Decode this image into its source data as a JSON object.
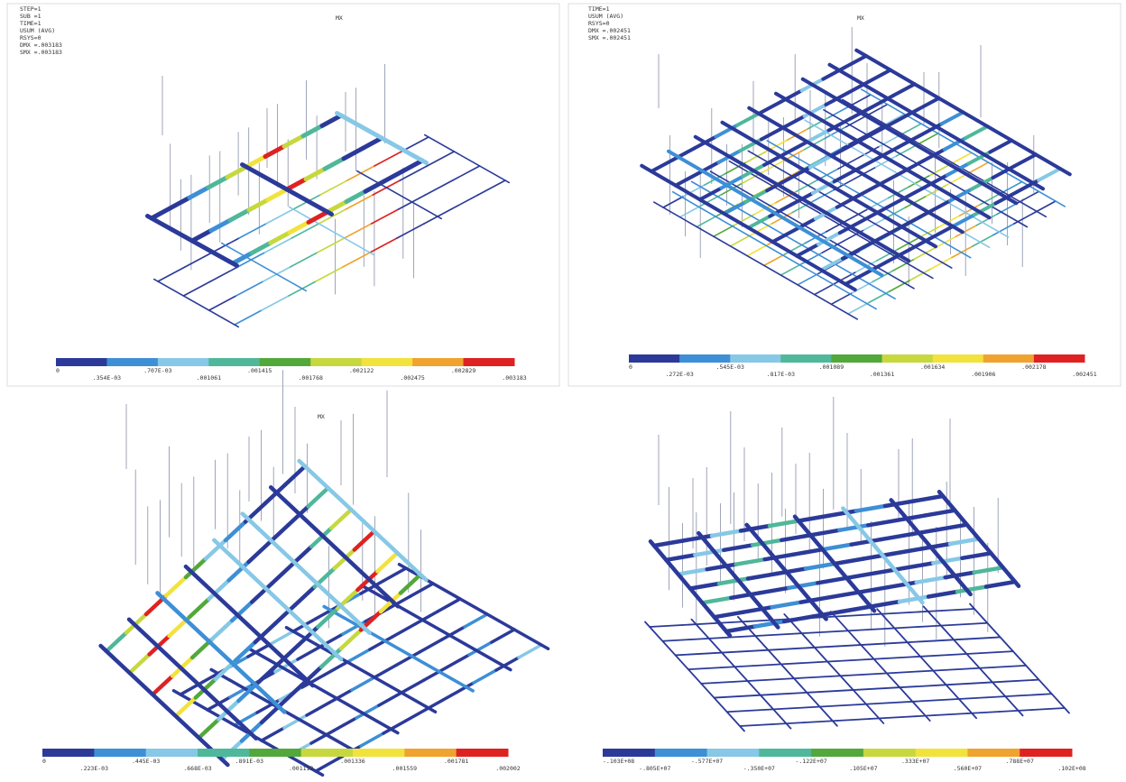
{
  "panels": [
    {
      "header": [
        "STEP=1",
        "SUB =1",
        "TIME=1",
        "USUM     (AVG)",
        "RSYS=0",
        "DMX =.003183",
        "SMX =.003183"
      ],
      "marker": "MX",
      "legend_colors": [
        "#2b3a99",
        "#3d8fd6",
        "#86c8e6",
        "#4fb79a",
        "#52a83a",
        "#c6d83e",
        "#f2e23c",
        "#f0a32e",
        "#de2222"
      ],
      "legend_labels": [
        "0",
        ".354E-03",
        ".707E-03",
        ".001061",
        ".001415",
        ".001768",
        ".002122",
        ".002475",
        ".002829",
        ".003183"
      ]
    },
    {
      "header": [
        "TIME=1",
        "USUM     (AVG)",
        "RSYS=0",
        "DMX =.002451",
        "SMX =.002451"
      ],
      "marker": "MX",
      "legend_colors": [
        "#2b3a99",
        "#3d8fd6",
        "#86c8e6",
        "#4fb79a",
        "#52a83a",
        "#c6d83e",
        "#f2e23c",
        "#f0a32e",
        "#de2222"
      ],
      "legend_labels": [
        "0",
        ".272E-03",
        ".545E-03",
        ".817E-03",
        ".001089",
        ".001361",
        ".001634",
        ".001906",
        ".002178",
        ".002451"
      ]
    },
    {
      "header": [],
      "marker": "MX",
      "legend_colors": [
        "#2b3a99",
        "#3d8fd6",
        "#86c8e6",
        "#4fb79a",
        "#52a83a",
        "#c6d83e",
        "#f2e23c",
        "#f0a32e",
        "#de2222"
      ],
      "legend_labels": [
        "0",
        ".223E-03",
        ".445E-03",
        ".668E-03",
        ".891E-03",
        ".001113",
        ".001336",
        ".001559",
        ".001781",
        ".002002"
      ]
    },
    {
      "header": [],
      "marker": "",
      "legend_colors": [
        "#2b3a99",
        "#3d8fd6",
        "#86c8e6",
        "#4fb79a",
        "#52a83a",
        "#c6d83e",
        "#f2e23c",
        "#f0a32e",
        "#de2222"
      ],
      "legend_labels": [
        "-.103E+08",
        "-.805E+07",
        "-.577E+07",
        "-.350E+07",
        "-.122E+07",
        ".105E+07",
        ".333E+07",
        ".560E+07",
        ".788E+07",
        ".102E+08"
      ]
    }
  ]
}
